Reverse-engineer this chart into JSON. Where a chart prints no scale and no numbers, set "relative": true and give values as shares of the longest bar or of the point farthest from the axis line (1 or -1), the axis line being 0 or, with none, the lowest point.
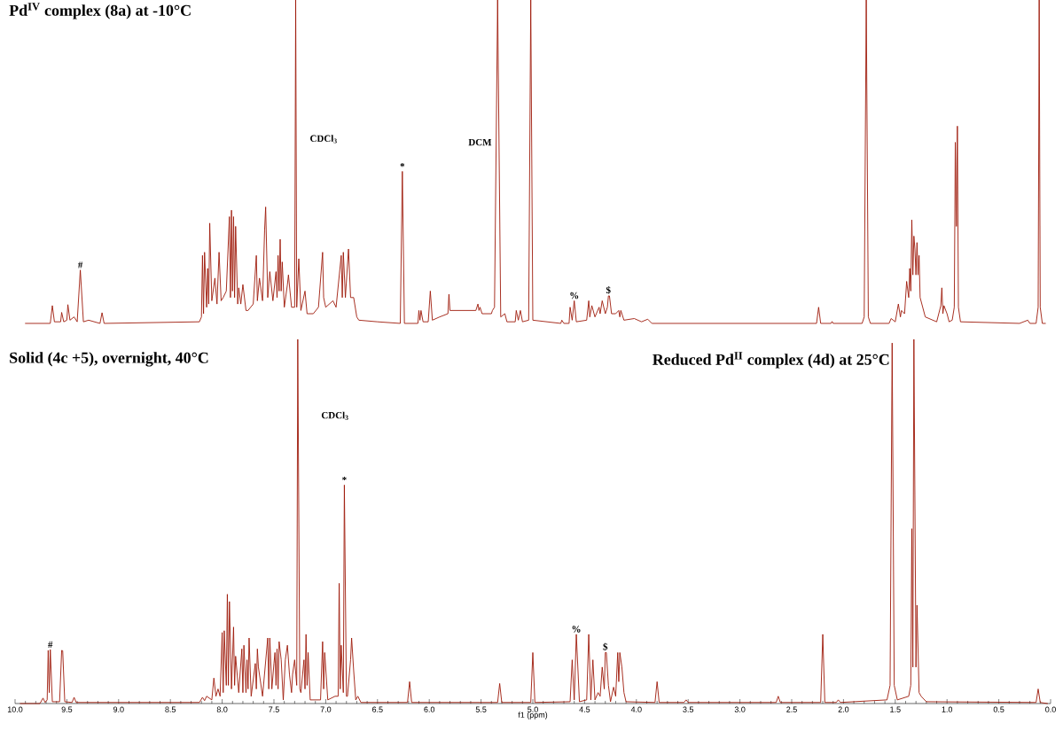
{
  "chart_data": [
    {
      "type": "line",
      "relative": true,
      "title": "Pd$^{IV}$ complex (8a) at -10°C",
      "xlim": [
        10,
        0
      ],
      "tick_labels": false,
      "annotations": [
        "CDCl$_{3}$",
        "DCM",
        {
          "text": "*",
          "x": 6.26,
          "y": 0.47
        },
        {
          "text": "#",
          "x": 9.37,
          "y": 0.165
        },
        {
          "text": "%",
          "x": 4.6,
          "y": 0.07
        },
        {
          "text": "$",
          "x": 4.27,
          "y": 0.085
        }
      ],
      "series": [
        {
          "color": "#9e1a0a",
          "x": [
            9.9,
            9.7,
            9.66,
            9.64,
            9.62,
            9.56,
            9.55,
            9.53,
            9.5,
            9.49,
            9.47,
            9.43,
            9.4,
            9.37,
            9.34,
            9.29,
            9.18,
            9.16,
            9.14,
            8.22,
            8.2,
            8.19,
            8.18,
            8.17,
            8.15,
            8.14,
            8.13,
            8.12,
            8.1,
            8.07,
            8.05,
            8.03,
            8.01,
            7.99,
            7.96,
            7.93,
            7.92,
            7.91,
            7.9,
            7.89,
            7.88,
            7.87,
            7.85,
            7.84,
            7.82,
            7.8,
            7.77,
            7.75,
            7.7,
            7.67,
            7.66,
            7.64,
            7.61,
            7.59,
            7.58,
            7.56,
            7.54,
            7.51,
            7.48,
            7.47,
            7.46,
            7.45,
            7.44,
            7.43,
            7.42,
            7.4,
            7.37,
            7.36,
            7.33,
            7.3,
            7.29,
            7.28,
            7.26,
            7.24,
            7.2,
            7.18,
            7.12,
            7.07,
            7.03,
            7.02,
            7.0,
            6.93,
            6.9,
            6.85,
            6.84,
            6.83,
            6.81,
            6.78,
            6.76,
            6.73,
            6.7,
            6.68,
            6.5,
            6.28,
            6.26,
            6.24,
            6.11,
            6.1,
            6.09,
            6.08,
            6.06,
            6.01,
            5.99,
            5.97,
            5.9,
            5.82,
            5.81,
            5.8,
            5.67,
            5.55,
            5.53,
            5.52,
            5.51,
            5.49,
            5.4,
            5.39,
            5.37,
            5.34,
            5.31,
            5.27,
            5.25,
            5.17,
            5.16,
            5.14,
            5.12,
            5.1,
            5.04,
            5.02,
            5.0,
            4.73,
            4.72,
            4.7,
            4.65,
            4.64,
            4.62,
            4.6,
            4.58,
            4.48,
            4.46,
            4.45,
            4.43,
            4.4,
            4.36,
            4.35,
            4.33,
            4.3,
            4.28,
            4.27,
            4.26,
            4.24,
            4.2,
            4.17,
            4.16,
            4.15,
            4.12,
            4.02,
            3.95,
            3.89,
            3.85,
            2.26,
            2.24,
            2.22,
            2.12,
            2.11,
            2.1,
            1.82,
            1.8,
            1.78,
            1.76,
            1.74,
            1.56,
            1.54,
            1.5,
            1.47,
            1.45,
            1.44,
            1.41,
            1.39,
            1.37,
            1.36,
            1.35,
            1.34,
            1.33,
            1.32,
            1.31,
            1.3,
            1.29,
            1.28,
            1.27,
            1.26,
            1.21,
            1.1,
            1.06,
            1.05,
            1.04,
            1.03,
            1.0,
            0.98,
            0.95,
            0.93,
            0.92,
            0.91,
            0.9,
            0.89,
            0.87,
            0.3,
            0.22,
            0.2,
            0.14,
            0.12,
            0.11,
            0.1,
            0.08,
            0.05
          ],
          "values": [
            0,
            0,
            0,
            0.055,
            0.005,
            0.005,
            0.034,
            0.005,
            0.01,
            0.058,
            0.01,
            0.02,
            0.005,
            0.165,
            0.005,
            0.01,
            0,
            0.033,
            0,
            0.005,
            0.02,
            0.21,
            0.03,
            0.22,
            0.05,
            0.17,
            0.06,
            0.31,
            0.07,
            0.14,
            0.06,
            0.22,
            0.07,
            0.08,
            0.1,
            0.33,
            0.08,
            0.35,
            0.1,
            0.33,
            0.08,
            0.3,
            0.06,
            0.11,
            0.06,
            0.12,
            0.04,
            0.04,
            0.06,
            0.21,
            0.07,
            0.14,
            0.07,
            0.29,
            0.36,
            0.08,
            0.16,
            0.07,
            0.16,
            0.08,
            0.21,
            0.1,
            0.26,
            0.1,
            0.19,
            0.05,
            0.12,
            0.15,
            0.05,
            0.05,
            1,
            0.05,
            0.2,
            0.04,
            0.1,
            0.03,
            0.03,
            0.05,
            0.22,
            0.08,
            0.05,
            0.07,
            0.05,
            0.21,
            0.08,
            0.22,
            0.08,
            0.23,
            0.08,
            0.08,
            0.02,
            0.01,
            0.005,
            0,
            0.47,
            0,
            0,
            0.04,
            0.01,
            0.04,
            0.005,
            0.005,
            0.1,
            0.01,
            0.02,
            0.03,
            0.09,
            0.04,
            0.04,
            0.04,
            0.06,
            0.04,
            0.05,
            0.03,
            0.03,
            0.04,
            0.05,
            1,
            0.02,
            0.03,
            0.005,
            0.005,
            0.04,
            0.01,
            0.04,
            0.005,
            0.01,
            1,
            0.01,
            0,
            0.01,
            0,
            0,
            0.05,
            0.01,
            0.07,
            0.005,
            0.01,
            0.07,
            0.02,
            0.055,
            0.02,
            0.05,
            0.03,
            0.07,
            0.03,
            0.05,
            0.085,
            0.085,
            0.03,
            0.03,
            0.04,
            0.02,
            0.04,
            0.01,
            0.015,
            0.005,
            0.013,
            0,
            0,
            0.05,
            0,
            0,
            0.006,
            0,
            0,
            0.02,
            1,
            0.02,
            0,
            0,
            0.015,
            0.005,
            0.06,
            0.02,
            0.04,
            0.03,
            0.13,
            0.08,
            0.17,
            0.1,
            0.32,
            0.15,
            0.27,
            0.23,
            0.15,
            0.25,
            0.15,
            0.21,
            0.08,
            0.02,
            0.005,
            0.055,
            0.11,
            0.03,
            0.055,
            0.03,
            0.005,
            0.01,
            0.05,
            0.56,
            0.3,
            0.61,
            0.05,
            0.005,
            0,
            0.01,
            0,
            0,
            0.05,
            1,
            0.05,
            0,
            0
          ]
        }
      ]
    },
    {
      "type": "line",
      "relative": true,
      "title": "Solid (4c +5), overnight, 40°C",
      "subtitle": "Reduced Pd$^{II}$ complex (4d) at 25°C",
      "xlabel": "f1 (ppm)",
      "xlim": [
        10,
        0
      ],
      "tick_labels": "x",
      "xticks": [
        {
          "value": 10,
          "label": "10.0"
        },
        {
          "value": 9.5,
          "label": "9.5"
        },
        {
          "value": 9,
          "label": "9.0"
        },
        {
          "value": 8.5,
          "label": "8.5"
        },
        {
          "value": 8,
          "label": "8.0"
        },
        {
          "value": 7.5,
          "label": "7.5"
        },
        {
          "value": 7,
          "label": "7.0"
        },
        {
          "value": 6.5,
          "label": "6.5"
        },
        {
          "value": 6,
          "label": "6.0"
        },
        {
          "value": 5.5,
          "label": "5.5"
        },
        {
          "value": 5,
          "label": "5.0"
        },
        {
          "value": 4.5,
          "label": "4.5"
        },
        {
          "value": 4,
          "label": "4.0"
        },
        {
          "value": 3.5,
          "label": "3.5"
        },
        {
          "value": 3,
          "label": "3.0"
        },
        {
          "value": 2.5,
          "label": "2.5"
        },
        {
          "value": 2,
          "label": "2.0"
        },
        {
          "value": 1.5,
          "label": "1.5"
        },
        {
          "value": 1,
          "label": "1.0"
        },
        {
          "value": 0.5,
          "label": "0.5"
        },
        {
          "value": 0,
          "label": "0.0"
        },
        {
          "value": 9.9,
          "label": null
        },
        {
          "value": 9.8,
          "label": null
        },
        {
          "value": 9.7,
          "label": null
        },
        {
          "value": 9.6,
          "label": null
        },
        {
          "value": 9.4,
          "label": null
        },
        {
          "value": 9.3,
          "label": null
        },
        {
          "value": 9.2,
          "label": null
        },
        {
          "value": 9.1,
          "label": null
        },
        {
          "value": 8.9,
          "label": null
        },
        {
          "value": 8.8,
          "label": null
        },
        {
          "value": 8.7,
          "label": null
        },
        {
          "value": 8.6,
          "label": null
        },
        {
          "value": 8.4,
          "label": null
        },
        {
          "value": 8.3,
          "label": null
        },
        {
          "value": 8.2,
          "label": null
        },
        {
          "value": 8.1,
          "label": null
        },
        {
          "value": 7.9,
          "label": null
        },
        {
          "value": 7.8,
          "label": null
        },
        {
          "value": 7.7,
          "label": null
        },
        {
          "value": 7.6,
          "label": null
        },
        {
          "value": 7.4,
          "label": null
        },
        {
          "value": 7.3,
          "label": null
        },
        {
          "value": 7.2,
          "label": null
        },
        {
          "value": 7.1,
          "label": null
        },
        {
          "value": 6.9,
          "label": null
        },
        {
          "value": 6.8,
          "label": null
        },
        {
          "value": 6.7,
          "label": null
        },
        {
          "value": 6.6,
          "label": null
        },
        {
          "value": 6.4,
          "label": null
        },
        {
          "value": 6.3,
          "label": null
        },
        {
          "value": 6.2,
          "label": null
        },
        {
          "value": 6.1,
          "label": null
        },
        {
          "value": 5.9,
          "label": null
        },
        {
          "value": 5.8,
          "label": null
        },
        {
          "value": 5.7,
          "label": null
        },
        {
          "value": 5.6,
          "label": null
        },
        {
          "value": 5.4,
          "label": null
        },
        {
          "value": 5.3,
          "label": null
        },
        {
          "value": 5.2,
          "label": null
        },
        {
          "value": 5.1,
          "label": null
        },
        {
          "value": 4.9,
          "label": null
        },
        {
          "value": 4.8,
          "label": null
        },
        {
          "value": 4.7,
          "label": null
        },
        {
          "value": 4.6,
          "label": null
        },
        {
          "value": 4.4,
          "label": null
        },
        {
          "value": 4.3,
          "label": null
        },
        {
          "value": 4.2,
          "label": null
        },
        {
          "value": 4.1,
          "label": null
        },
        {
          "value": 3.9,
          "label": null
        },
        {
          "value": 3.8,
          "label": null
        },
        {
          "value": 3.7,
          "label": null
        },
        {
          "value": 3.6,
          "label": null
        },
        {
          "value": 3.4,
          "label": null
        },
        {
          "value": 3.3,
          "label": null
        },
        {
          "value": 3.2,
          "label": null
        },
        {
          "value": 3.1,
          "label": null
        },
        {
          "value": 2.9,
          "label": null
        },
        {
          "value": 2.8,
          "label": null
        },
        {
          "value": 2.7,
          "label": null
        },
        {
          "value": 2.6,
          "label": null
        },
        {
          "value": 2.4,
          "label": null
        },
        {
          "value": 2.3,
          "label": null
        },
        {
          "value": 2.2,
          "label": null
        },
        {
          "value": 2.1,
          "label": null
        },
        {
          "value": 1.9,
          "label": null
        },
        {
          "value": 1.8,
          "label": null
        },
        {
          "value": 1.7,
          "label": null
        },
        {
          "value": 1.6,
          "label": null
        },
        {
          "value": 1.4,
          "label": null
        },
        {
          "value": 1.3,
          "label": null
        },
        {
          "value": 1.2,
          "label": null
        },
        {
          "value": 1.1,
          "label": null
        },
        {
          "value": 0.9,
          "label": null
        },
        {
          "value": 0.8,
          "label": null
        },
        {
          "value": 0.7,
          "label": null
        },
        {
          "value": 0.6,
          "label": null
        },
        {
          "value": 0.4,
          "label": null
        },
        {
          "value": 0.3,
          "label": null
        },
        {
          "value": 0.2,
          "label": null
        },
        {
          "value": 0.1,
          "label": null
        }
      ],
      "annotations": [
        "CDCl$_{3}$",
        {
          "text": "*",
          "x": 6.82,
          "y": 0.6
        },
        {
          "text": "#",
          "x": 9.66,
          "y": 0.148
        },
        {
          "text": "%",
          "x": 4.58,
          "y": 0.19
        },
        {
          "text": "$",
          "x": 4.3,
          "y": 0.14
        }
      ],
      "series": [
        {
          "color": "#9e1a0a",
          "x": [
            9.95,
            9.76,
            9.73,
            9.71,
            9.69,
            9.68,
            9.67,
            9.66,
            9.64,
            9.57,
            9.55,
            9.54,
            9.52,
            9.45,
            9.43,
            9.41,
            8.22,
            8.19,
            8.17,
            8.15,
            8.1,
            8.08,
            8.06,
            8.04,
            8.02,
            8.0,
            7.99,
            7.98,
            7.96,
            7.95,
            7.94,
            7.93,
            7.91,
            7.89,
            7.88,
            7.87,
            7.84,
            7.81,
            7.8,
            7.79,
            7.77,
            7.76,
            7.75,
            7.74,
            7.72,
            7.68,
            7.67,
            7.66,
            7.65,
            7.61,
            7.56,
            7.55,
            7.54,
            7.52,
            7.5,
            7.49,
            7.48,
            7.47,
            7.46,
            7.45,
            7.43,
            7.41,
            7.39,
            7.37,
            7.35,
            7.33,
            7.32,
            7.3,
            7.28,
            7.27,
            7.25,
            7.24,
            7.21,
            7.2,
            7.19,
            7.18,
            7.17,
            7.15,
            7.05,
            7.03,
            7.02,
            7.01,
            6.98,
            6.91,
            6.88,
            6.87,
            6.86,
            6.85,
            6.83,
            6.82,
            6.8,
            6.79,
            6.76,
            6.75,
            6.73,
            6.71,
            6.69,
            6.66,
            6.21,
            6.19,
            6.17,
            5.34,
            5.32,
            5.3,
            5.02,
            5.0,
            4.98,
            4.64,
            4.62,
            4.6,
            4.58,
            4.55,
            4.48,
            4.46,
            4.44,
            4.42,
            4.4,
            4.37,
            4.35,
            4.33,
            4.31,
            4.3,
            4.29,
            4.27,
            4.25,
            4.22,
            4.2,
            4.18,
            4.17,
            4.16,
            4.14,
            4.12,
            4.1,
            3.82,
            3.8,
            3.78,
            3.54,
            3.52,
            3.5,
            2.65,
            2.63,
            2.61,
            2.22,
            2.2,
            2.18,
            2.07,
            2.05,
            2.03,
            1.58,
            1.55,
            1.53,
            1.51,
            1.48,
            1.37,
            1.35,
            1.34,
            1.33,
            1.32,
            1.3,
            1.29,
            1.27,
            1.25,
            1.2,
            0.14,
            0.12,
            0.1,
            0.03
          ],
          "values": [
            0,
            0,
            0.015,
            0.003,
            0.01,
            0.146,
            0.03,
            0.148,
            0.005,
            0.005,
            0.146,
            0.145,
            0.005,
            0.003,
            0.017,
            0.003,
            0.003,
            0.017,
            0.008,
            0.02,
            0.01,
            0.07,
            0.02,
            0.04,
            0.02,
            0.195,
            0.03,
            0.2,
            0.05,
            0.3,
            0.05,
            0.28,
            0.04,
            0.21,
            0.05,
            0.13,
            0.03,
            0.15,
            0.03,
            0.16,
            0.03,
            0.12,
            0.04,
            0.18,
            0.02,
            0.11,
            0.04,
            0.15,
            0.1,
            0.02,
            0.18,
            0.04,
            0.18,
            0.04,
            0.11,
            0.14,
            0.05,
            0.15,
            0.04,
            0.17,
            0.12,
            0.01,
            0.12,
            0.16,
            0.08,
            0.03,
            0.08,
            0.12,
            0.05,
            1,
            0.04,
            0.03,
            0.12,
            0.04,
            0.19,
            0.05,
            0.14,
            0.01,
            0.01,
            0.17,
            0.04,
            0.14,
            0.01,
            0.02,
            0.02,
            0.33,
            0.04,
            0.16,
            0.03,
            0.6,
            0.02,
            0.02,
            0.12,
            0.18,
            0.09,
            0.01,
            0.02,
            0.003,
            0.003,
            0.06,
            0.003,
            0.003,
            0.055,
            0.003,
            0.003,
            0.14,
            0.003,
            0.005,
            0.12,
            0.01,
            0.19,
            0.005,
            0.01,
            0.19,
            0.01,
            0.12,
            0.01,
            0.03,
            0.02,
            0.1,
            0.04,
            0.14,
            0.14,
            0.05,
            0.005,
            0.045,
            0.02,
            0.14,
            0.06,
            0.14,
            0.1,
            0.03,
            0.005,
            0.003,
            0.06,
            0.003,
            0.003,
            0.01,
            0.003,
            0.003,
            0.02,
            0.003,
            0.003,
            0.19,
            0.003,
            0.003,
            0.01,
            0.003,
            0.01,
            0.05,
            0.99,
            0.05,
            0.01,
            0.02,
            0.05,
            0.48,
            0.1,
            1,
            0.1,
            0.27,
            0.03,
            0.02,
            0.005,
            0.003,
            0.04,
            0.003,
            0
          ]
        }
      ]
    }
  ]
}
